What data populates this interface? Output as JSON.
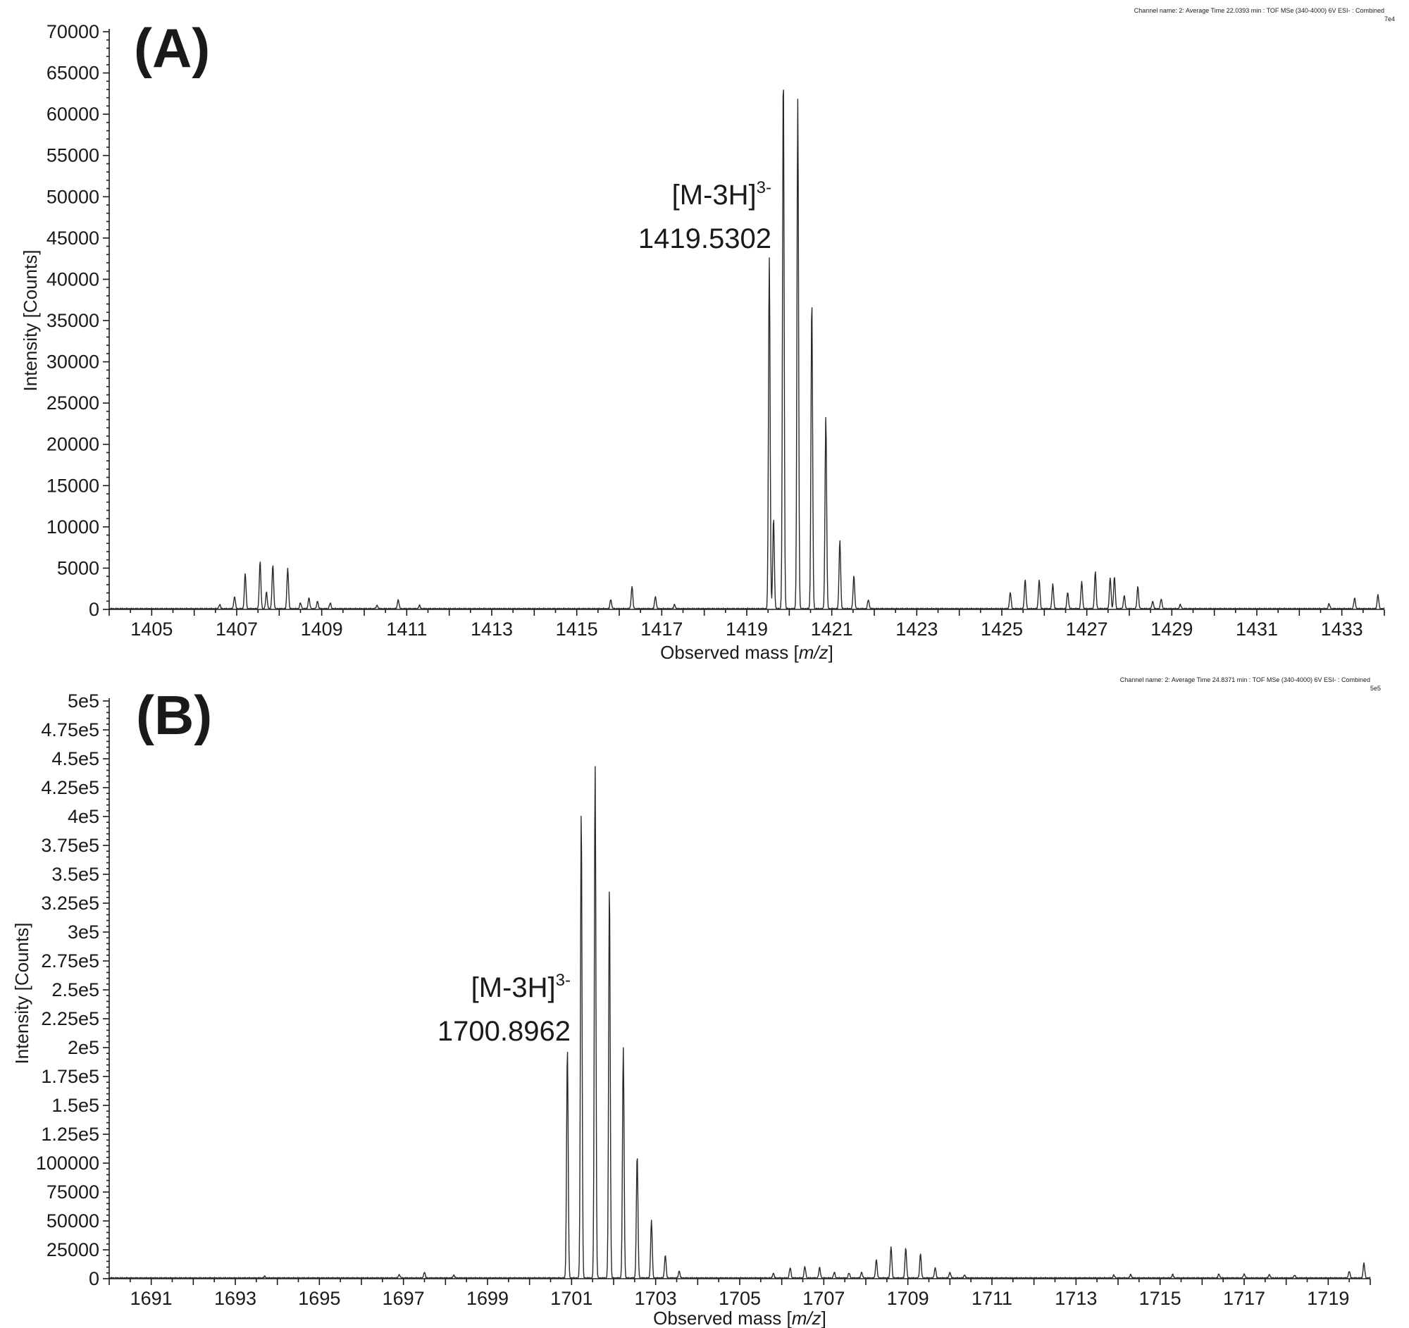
{
  "chart_data": [
    {
      "type": "line",
      "panel_label": "(A)",
      "channel_text": "Channel name: 2: Average Time 22.0393 min : TOF MSe (340-4000) 6V ESI- : Combined",
      "scale_text": "7e4",
      "xlabel": "Observed mass [m/z]",
      "xlabel_plain": "Observed mass [",
      "xlabel_italic": "m/z",
      "xlabel_end": "]",
      "ylabel": "Intensity [Counts]",
      "xlim": [
        1404.0,
        1434.0
      ],
      "ylim": [
        0,
        70000
      ],
      "x_ticks": [
        "1405",
        "1407",
        "1409",
        "1411",
        "1413",
        "1415",
        "1417",
        "1419",
        "1421",
        "1423",
        "1425",
        "1427",
        "1429",
        "1431",
        "1433"
      ],
      "y_ticks": [
        "0",
        "5000",
        "10000",
        "15000",
        "20000",
        "25000",
        "30000",
        "35000",
        "40000",
        "45000",
        "50000",
        "55000",
        "60000",
        "65000",
        "70000"
      ],
      "annotation": {
        "ion": "[M-3H]",
        "charge": "3-",
        "mz": "1419.5302"
      },
      "peaks": [
        {
          "mz": 1406.6,
          "intensity": 500
        },
        {
          "mz": 1406.95,
          "intensity": 1500
        },
        {
          "mz": 1407.2,
          "intensity": 4300
        },
        {
          "mz": 1407.55,
          "intensity": 5700
        },
        {
          "mz": 1407.7,
          "intensity": 2000
        },
        {
          "mz": 1407.85,
          "intensity": 5300
        },
        {
          "mz": 1408.2,
          "intensity": 4900
        },
        {
          "mz": 1408.5,
          "intensity": 700
        },
        {
          "mz": 1408.7,
          "intensity": 1300
        },
        {
          "mz": 1408.9,
          "intensity": 900
        },
        {
          "mz": 1409.2,
          "intensity": 700
        },
        {
          "mz": 1410.3,
          "intensity": 400
        },
        {
          "mz": 1410.8,
          "intensity": 1100
        },
        {
          "mz": 1411.3,
          "intensity": 400
        },
        {
          "mz": 1415.8,
          "intensity": 1100
        },
        {
          "mz": 1416.3,
          "intensity": 2700
        },
        {
          "mz": 1416.85,
          "intensity": 1500
        },
        {
          "mz": 1417.3,
          "intensity": 500
        },
        {
          "mz": 1419.53,
          "intensity": 42500
        },
        {
          "mz": 1419.63,
          "intensity": 11000
        },
        {
          "mz": 1419.86,
          "intensity": 65500
        },
        {
          "mz": 1420.2,
          "intensity": 61800
        },
        {
          "mz": 1420.53,
          "intensity": 37500
        },
        {
          "mz": 1420.86,
          "intensity": 23300
        },
        {
          "mz": 1421.19,
          "intensity": 8300
        },
        {
          "mz": 1421.52,
          "intensity": 4000
        },
        {
          "mz": 1421.86,
          "intensity": 1100
        },
        {
          "mz": 1425.2,
          "intensity": 2000
        },
        {
          "mz": 1425.55,
          "intensity": 3500
        },
        {
          "mz": 1425.88,
          "intensity": 3500
        },
        {
          "mz": 1426.2,
          "intensity": 3000
        },
        {
          "mz": 1426.55,
          "intensity": 2000
        },
        {
          "mz": 1426.88,
          "intensity": 3300
        },
        {
          "mz": 1427.2,
          "intensity": 4500
        },
        {
          "mz": 1427.55,
          "intensity": 3800
        },
        {
          "mz": 1427.65,
          "intensity": 3900
        },
        {
          "mz": 1427.88,
          "intensity": 1600
        },
        {
          "mz": 1428.2,
          "intensity": 2700
        },
        {
          "mz": 1428.55,
          "intensity": 900
        },
        {
          "mz": 1428.75,
          "intensity": 1200
        },
        {
          "mz": 1429.2,
          "intensity": 500
        },
        {
          "mz": 1432.7,
          "intensity": 600
        },
        {
          "mz": 1433.3,
          "intensity": 1300
        },
        {
          "mz": 1433.85,
          "intensity": 1700
        }
      ]
    },
    {
      "type": "line",
      "panel_label": "(B)",
      "channel_text": "Channel name: 2: Average Time 24.8371 min : TOF MSe (340-4000) 6V ESI- : Combined",
      "scale_text": "5e5",
      "xlabel": "Observed mass [m/z]",
      "xlabel_plain": "Observed mass [",
      "xlabel_italic": "m/z",
      "xlabel_end": "]",
      "ylabel": "Intensity [Counts]",
      "xlim": [
        1690.0,
        1720.0
      ],
      "ylim": [
        0,
        500000
      ],
      "x_ticks": [
        "1691",
        "1693",
        "1695",
        "1697",
        "1699",
        "1701",
        "1703",
        "1705",
        "1707",
        "1709",
        "1711",
        "1713",
        "1715",
        "1717",
        "1719"
      ],
      "y_ticks": [
        "0",
        "25000",
        "50000",
        "75000",
        "100000",
        "1.25e5",
        "1.5e5",
        "1.75e5",
        "2e5",
        "2.25e5",
        "2.5e5",
        "2.75e5",
        "3e5",
        "3.25e5",
        "3.5e5",
        "3.75e5",
        "4e5",
        "4.25e5",
        "4.5e5",
        "4.75e5",
        "5e5"
      ],
      "annotation": {
        "ion": "[M-3H]",
        "charge": "3-",
        "mz": "1700.8962"
      },
      "peaks": [
        {
          "mz": 1693.7,
          "intensity": 1500
        },
        {
          "mz": 1696.9,
          "intensity": 3000
        },
        {
          "mz": 1697.5,
          "intensity": 5000
        },
        {
          "mz": 1698.2,
          "intensity": 2500
        },
        {
          "mz": 1700.9,
          "intensity": 199000
        },
        {
          "mz": 1701.23,
          "intensity": 405000
        },
        {
          "mz": 1701.56,
          "intensity": 444000
        },
        {
          "mz": 1701.9,
          "intensity": 341000
        },
        {
          "mz": 1702.23,
          "intensity": 200000
        },
        {
          "mz": 1702.56,
          "intensity": 107000
        },
        {
          "mz": 1702.9,
          "intensity": 50000
        },
        {
          "mz": 1703.23,
          "intensity": 20000
        },
        {
          "mz": 1703.56,
          "intensity": 6000
        },
        {
          "mz": 1705.8,
          "intensity": 4000
        },
        {
          "mz": 1706.2,
          "intensity": 9000
        },
        {
          "mz": 1706.55,
          "intensity": 10000
        },
        {
          "mz": 1706.9,
          "intensity": 9000
        },
        {
          "mz": 1707.25,
          "intensity": 5000
        },
        {
          "mz": 1707.6,
          "intensity": 4500
        },
        {
          "mz": 1707.9,
          "intensity": 5000
        },
        {
          "mz": 1708.25,
          "intensity": 16000
        },
        {
          "mz": 1708.6,
          "intensity": 27000
        },
        {
          "mz": 1708.95,
          "intensity": 26000
        },
        {
          "mz": 1709.3,
          "intensity": 21000
        },
        {
          "mz": 1709.65,
          "intensity": 9000
        },
        {
          "mz": 1710.0,
          "intensity": 5000
        },
        {
          "mz": 1710.35,
          "intensity": 2500
        },
        {
          "mz": 1713.9,
          "intensity": 2500
        },
        {
          "mz": 1714.3,
          "intensity": 3000
        },
        {
          "mz": 1715.3,
          "intensity": 3000
        },
        {
          "mz": 1716.4,
          "intensity": 3500
        },
        {
          "mz": 1717.0,
          "intensity": 3500
        },
        {
          "mz": 1717.6,
          "intensity": 3000
        },
        {
          "mz": 1718.2,
          "intensity": 2500
        },
        {
          "mz": 1719.5,
          "intensity": 6000
        },
        {
          "mz": 1719.85,
          "intensity": 13000
        }
      ]
    }
  ]
}
